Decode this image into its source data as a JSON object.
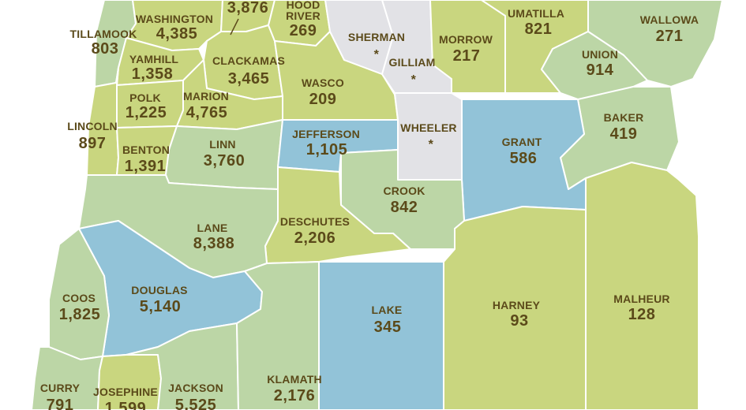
{
  "colors": {
    "tier_high": "#c9d67f",
    "tier_mid": "#bcd6a6",
    "tier_low": "#92c3d8",
    "tier_suppressed": "#e2e2e6",
    "label": "#5b4a1a",
    "border": "#ffffff",
    "background": "#ffffff"
  },
  "counties": [
    {
      "id": "tillamook",
      "name": "TILLAMOOK",
      "value": "803",
      "tier": "tier_mid"
    },
    {
      "id": "washington",
      "name": "WASHINGTON",
      "value": "4,385",
      "tier": "tier_high"
    },
    {
      "id": "multnomah",
      "name": "",
      "value": "3,876",
      "tier": "tier_high"
    },
    {
      "id": "hood-river",
      "name": "HOOD RIVER",
      "value": "269",
      "tier": "tier_high"
    },
    {
      "id": "sherman",
      "name": "SHERMAN",
      "value": "*",
      "tier": "tier_suppressed"
    },
    {
      "id": "gilliam",
      "name": "GILLIAM",
      "value": "*",
      "tier": "tier_suppressed"
    },
    {
      "id": "morrow",
      "name": "MORROW",
      "value": "217",
      "tier": "tier_high"
    },
    {
      "id": "umatilla",
      "name": "UMATILLA",
      "value": "821",
      "tier": "tier_high"
    },
    {
      "id": "wallowa",
      "name": "WALLOWA",
      "value": "271",
      "tier": "tier_mid"
    },
    {
      "id": "union",
      "name": "UNION",
      "value": "914",
      "tier": "tier_mid"
    },
    {
      "id": "yamhill",
      "name": "YAMHILL",
      "value": "1,358",
      "tier": "tier_high"
    },
    {
      "id": "clackamas",
      "name": "CLACKAMAS",
      "value": "3,465",
      "tier": "tier_high"
    },
    {
      "id": "wasco",
      "name": "WASCO",
      "value": "209",
      "tier": "tier_high"
    },
    {
      "id": "polk",
      "name": "POLK",
      "value": "1,225",
      "tier": "tier_high"
    },
    {
      "id": "marion",
      "name": "MARION",
      "value": "4,765",
      "tier": "tier_high"
    },
    {
      "id": "lincoln",
      "name": "LINCOLN",
      "value": "897",
      "tier": "tier_high"
    },
    {
      "id": "jefferson",
      "name": "JEFFERSON",
      "value": "1,105",
      "tier": "tier_low"
    },
    {
      "id": "wheeler",
      "name": "WHEELER",
      "value": "*",
      "tier": "tier_suppressed"
    },
    {
      "id": "grant",
      "name": "GRANT",
      "value": "586",
      "tier": "tier_low"
    },
    {
      "id": "baker",
      "name": "BAKER",
      "value": "419",
      "tier": "tier_mid"
    },
    {
      "id": "benton",
      "name": "BENTON",
      "value": "1,391",
      "tier": "tier_high"
    },
    {
      "id": "linn",
      "name": "LINN",
      "value": "3,760",
      "tier": "tier_mid"
    },
    {
      "id": "crook",
      "name": "CROOK",
      "value": "842",
      "tier": "tier_mid"
    },
    {
      "id": "deschutes",
      "name": "DESCHUTES",
      "value": "2,206",
      "tier": "tier_high"
    },
    {
      "id": "lane",
      "name": "LANE",
      "value": "8,388",
      "tier": "tier_mid"
    },
    {
      "id": "douglas",
      "name": "DOUGLAS",
      "value": "5,140",
      "tier": "tier_low"
    },
    {
      "id": "coos",
      "name": "COOS",
      "value": "1,825",
      "tier": "tier_mid"
    },
    {
      "id": "lake",
      "name": "LAKE",
      "value": "345",
      "tier": "tier_low"
    },
    {
      "id": "harney",
      "name": "HARNEY",
      "value": "93",
      "tier": "tier_high"
    },
    {
      "id": "malheur",
      "name": "MALHEUR",
      "value": "128",
      "tier": "tier_high"
    },
    {
      "id": "klamath",
      "name": "KLAMATH",
      "value": "2,176",
      "tier": "tier_mid"
    },
    {
      "id": "curry",
      "name": "CURRY",
      "value": "791",
      "tier": "tier_mid"
    },
    {
      "id": "josephine",
      "name": "JOSEPHINE",
      "value": "1,599",
      "tier": "tier_high"
    },
    {
      "id": "jackson",
      "name": "JACKSON",
      "value": "5,525",
      "tier": "tier_mid"
    }
  ]
}
